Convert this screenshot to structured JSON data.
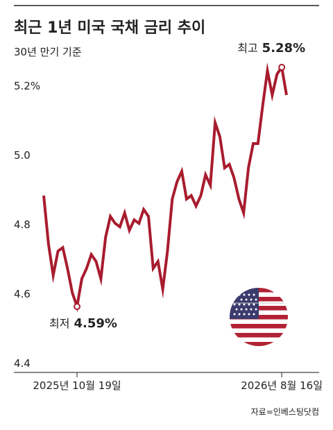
{
  "chart_data": {
    "type": "line",
    "title": "최근 1년 미국 국채 금리 추이",
    "subtitle": "30년 만기 기준",
    "source": "자료=인베스팅닷컴",
    "categories": [
      null,
      null,
      null,
      null,
      null,
      null,
      null,
      "2025년 10월 19일",
      null,
      null,
      null,
      null,
      null,
      null,
      null,
      null,
      null,
      null,
      null,
      null,
      null,
      null,
      null,
      null,
      null,
      null,
      null,
      null,
      null,
      null,
      null,
      null,
      null,
      null,
      null,
      null,
      null,
      null,
      null,
      null,
      null,
      null,
      null,
      null,
      null,
      null,
      null,
      null,
      null,
      null,
      "2026년 8월 16일",
      null
    ],
    "values": [
      4.91,
      4.77,
      4.68,
      4.75,
      4.76,
      4.7,
      4.63,
      4.59,
      4.67,
      4.7,
      4.74,
      4.72,
      4.67,
      4.79,
      4.85,
      4.83,
      4.82,
      4.86,
      4.81,
      4.84,
      4.83,
      4.87,
      4.85,
      4.7,
      4.72,
      4.64,
      4.75,
      4.9,
      4.95,
      4.98,
      4.9,
      4.91,
      4.88,
      4.91,
      4.97,
      4.94,
      5.12,
      5.08,
      4.99,
      5.0,
      4.96,
      4.9,
      4.86,
      4.99,
      5.06,
      5.06,
      5.17,
      5.27,
      5.2,
      5.26,
      5.28,
      5.2
    ],
    "color": "#a81c2e",
    "annotations": [
      {
        "text": "최고",
        "label": "5.28%"
      },
      {
        "text": "최저",
        "label": "4.59%"
      }
    ],
    "ylim": [
      4.4,
      5.35
    ],
    "yticks": [
      4.4,
      4.6,
      4.8,
      {
        "value": 5,
        "label": "5.0"
      },
      {
        "value": 5.2,
        "label": "5.2%"
      }
    ],
    "grid": true
  }
}
